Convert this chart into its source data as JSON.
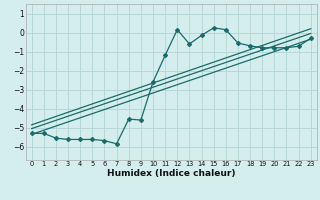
{
  "title": "",
  "xlabel": "Humidex (Indice chaleur)",
  "ylabel": "",
  "bg_color": "#d4eeed",
  "grid_color": "#b8d8d8",
  "line_color": "#1a6b6b",
  "xlim": [
    -0.5,
    23.5
  ],
  "ylim": [
    -6.7,
    1.5
  ],
  "yticks": [
    1,
    0,
    -1,
    -2,
    -3,
    -4,
    -5,
    -6
  ],
  "xticks": [
    0,
    1,
    2,
    3,
    4,
    5,
    6,
    7,
    8,
    9,
    10,
    11,
    12,
    13,
    14,
    15,
    16,
    17,
    18,
    19,
    20,
    21,
    22,
    23
  ],
  "line1_x": [
    0,
    1,
    2,
    3,
    4,
    5,
    6,
    7,
    8,
    9,
    10,
    11,
    12,
    13,
    14,
    15,
    16,
    17,
    18,
    19,
    20,
    21,
    22,
    23
  ],
  "line1_y": [
    -5.3,
    -5.3,
    -5.55,
    -5.62,
    -5.62,
    -5.62,
    -5.68,
    -5.85,
    -4.55,
    -4.6,
    -2.6,
    -1.2,
    0.15,
    -0.6,
    -0.15,
    0.25,
    0.15,
    -0.55,
    -0.7,
    -0.8,
    -0.8,
    -0.8,
    -0.72,
    -0.3
  ],
  "line2_x": [
    0,
    23
  ],
  "line2_y": [
    -5.35,
    -0.35
  ],
  "line3_x": [
    0,
    23
  ],
  "line3_y": [
    -5.05,
    -0.05
  ],
  "line4_x": [
    0,
    23
  ],
  "line4_y": [
    -4.85,
    0.2
  ],
  "marker": "D",
  "marker_size": 2.0,
  "lw": 0.9
}
